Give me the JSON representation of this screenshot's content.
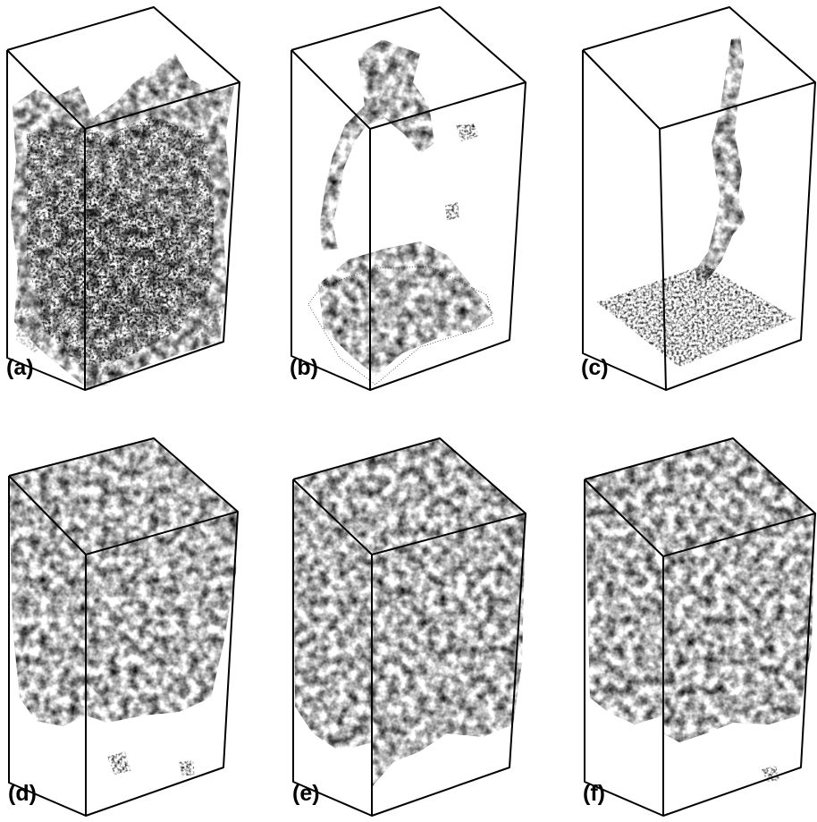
{
  "figure": {
    "panels": [
      {
        "id": "a",
        "label": "(a)",
        "structure": "spanning-cluster-full",
        "colors": [
          "#8f1d12",
          "#e5431a",
          "#f77f1f",
          "#fbb230"
        ]
      },
      {
        "id": "b",
        "label": "(b)",
        "structure": "spanning-cluster-arch",
        "colors": [
          "#4a0d08",
          "#9e1f14",
          "#d43a1a",
          "#1a0a08"
        ]
      },
      {
        "id": "c",
        "label": "(c)",
        "structure": "single-strand",
        "colors": [
          "#3a0a08",
          "#8c1c12",
          "#c8321a",
          "#1a0a08"
        ]
      },
      {
        "id": "d",
        "label": "(d)",
        "structure": "filled-top-sparse",
        "colors": [
          "#a32818",
          "#e4501c",
          "#f38a22",
          "#fbb02c"
        ]
      },
      {
        "id": "e",
        "label": "(e)",
        "structure": "filled-top-dense",
        "colors": [
          "#f8c51a",
          "#fde23a",
          "#f79a22",
          "#fff06a"
        ]
      },
      {
        "id": "f",
        "label": "(f)",
        "structure": "filled-top-medium",
        "colors": [
          "#f8b21e",
          "#fdd636",
          "#f28722",
          "#fff06a"
        ]
      }
    ]
  }
}
